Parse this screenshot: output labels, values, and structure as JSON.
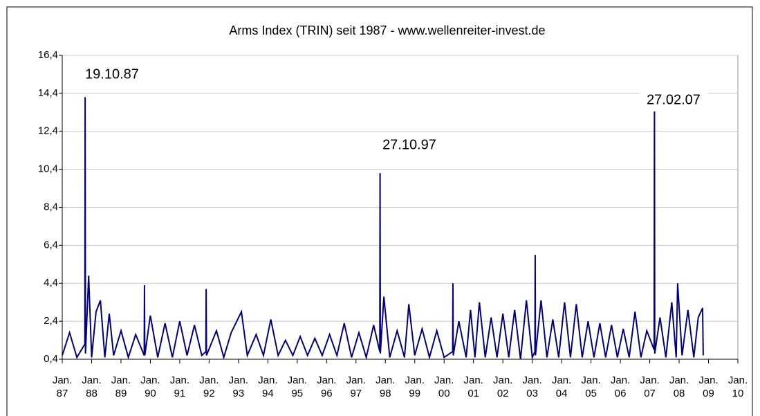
{
  "chart_data": {
    "type": "line",
    "title": "Arms Index (TRIN) seit 1987 - www.wellenreiter-invest.de",
    "annotations": [
      "19.10.87",
      "27.10.97",
      "27.02.07"
    ],
    "color": "#000080",
    "grid": true,
    "xlim": [
      1987,
      2010
    ],
    "xticks": [
      {
        "value": 1987,
        "label": "Jan. 87"
      },
      {
        "value": 1988,
        "label": "Jan. 88"
      },
      {
        "value": 1989,
        "label": "Jan. 89"
      },
      {
        "value": 1990,
        "label": "Jan. 90"
      },
      {
        "value": 1991,
        "label": "Jan. 91"
      },
      {
        "value": 1992,
        "label": "Jan. 92"
      },
      {
        "value": 1993,
        "label": "Jan. 93"
      },
      {
        "value": 1994,
        "label": "Jan. 94"
      },
      {
        "value": 1995,
        "label": "Jan. 95"
      },
      {
        "value": 1996,
        "label": "Jan. 96"
      },
      {
        "value": 1997,
        "label": "Jan. 97"
      },
      {
        "value": 1998,
        "label": "Jan. 98"
      },
      {
        "value": 1999,
        "label": "Jan. 99"
      },
      {
        "value": 2000,
        "label": "Jan. 00"
      },
      {
        "value": 2001,
        "label": "Jan. 01"
      },
      {
        "value": 2002,
        "label": "Jan. 02"
      },
      {
        "value": 2003,
        "label": "Jan. 03"
      },
      {
        "value": 2004,
        "label": "Jan. 04"
      },
      {
        "value": 2005,
        "label": "Jan. 05"
      },
      {
        "value": 2006,
        "label": "Jan. 06"
      },
      {
        "value": 2007,
        "label": "Jan. 07"
      },
      {
        "value": 2008,
        "label": "Jan. 08"
      },
      {
        "value": 2009,
        "label": "Jan. 09"
      },
      {
        "value": 2010,
        "label": "Jan. 10"
      }
    ],
    "ylim": [
      0.4,
      16.4
    ],
    "yticks": [
      {
        "value": 0.4,
        "label": "0,4"
      },
      {
        "value": 2.4,
        "label": "2,4"
      },
      {
        "value": 4.4,
        "label": "4,4"
      },
      {
        "value": 6.4,
        "label": "6,4"
      },
      {
        "value": 8.4,
        "label": "8,4"
      },
      {
        "value": 10.4,
        "label": "10,4"
      },
      {
        "value": 12.4,
        "label": "12,4"
      },
      {
        "value": 14.4,
        "label": "14,4"
      },
      {
        "value": 16.4,
        "label": "16,4"
      }
    ],
    "x": [
      1987.0,
      1987.25,
      1987.5,
      1987.77,
      1987.78,
      1987.79,
      1987.9,
      1988.0,
      1988.15,
      1988.3,
      1988.45,
      1988.6,
      1988.75,
      1989.0,
      1989.25,
      1989.5,
      1989.79,
      1989.8,
      1989.81,
      1990.0,
      1990.25,
      1990.5,
      1990.75,
      1991.0,
      1991.25,
      1991.5,
      1991.75,
      1991.89,
      1991.9,
      1991.91,
      1992.25,
      1992.5,
      1992.75,
      1993.1,
      1993.3,
      1993.6,
      1993.85,
      1994.1,
      1994.35,
      1994.6,
      1994.85,
      1995.1,
      1995.35,
      1995.6,
      1995.85,
      1996.1,
      1996.35,
      1996.6,
      1996.85,
      1997.1,
      1997.35,
      1997.6,
      1997.81,
      1997.82,
      1997.83,
      1997.95,
      1998.15,
      1998.4,
      1998.65,
      1998.8,
      1999.0,
      1999.25,
      1999.5,
      1999.75,
      2000.0,
      2000.29,
      2000.3,
      2000.31,
      2000.5,
      2000.75,
      2000.9,
      2001.05,
      2001.2,
      2001.4,
      2001.6,
      2001.8,
      2002.0,
      2002.2,
      2002.4,
      2002.6,
      2002.8,
      2003.0,
      2003.09,
      2003.1,
      2003.11,
      2003.3,
      2003.5,
      2003.7,
      2003.9,
      2004.1,
      2004.3,
      2004.5,
      2004.7,
      2004.9,
      2005.1,
      2005.3,
      2005.5,
      2005.7,
      2005.9,
      2006.1,
      2006.3,
      2006.5,
      2006.7,
      2006.9,
      2007.15,
      2007.16,
      2007.17,
      2007.35,
      2007.55,
      2007.75,
      2007.9,
      2007.95,
      2008.1,
      2008.3,
      2008.5,
      2008.65,
      2008.8,
      2008.82
    ],
    "values": [
      0.6,
      1.8,
      0.5,
      1.2,
      14.2,
      0.7,
      4.8,
      0.5,
      2.9,
      3.5,
      0.5,
      2.8,
      0.6,
      1.9,
      0.5,
      1.7,
      0.6,
      4.3,
      0.6,
      2.7,
      0.5,
      2.3,
      0.5,
      2.4,
      0.6,
      2.2,
      0.6,
      0.8,
      4.1,
      0.6,
      1.9,
      0.5,
      1.8,
      2.9,
      0.6,
      1.7,
      0.6,
      2.5,
      0.6,
      1.4,
      0.6,
      1.6,
      0.6,
      1.5,
      0.6,
      1.7,
      0.6,
      2.3,
      0.5,
      1.8,
      0.5,
      2.2,
      0.8,
      10.2,
      0.7,
      3.7,
      0.5,
      1.9,
      0.5,
      3.3,
      0.6,
      2.0,
      0.5,
      1.9,
      0.5,
      0.8,
      4.4,
      0.6,
      2.4,
      0.5,
      3.0,
      0.5,
      3.4,
      0.5,
      2.6,
      0.5,
      2.8,
      0.5,
      3.0,
      0.4,
      3.5,
      0.5,
      0.8,
      5.9,
      0.6,
      3.5,
      0.5,
      2.5,
      0.5,
      3.4,
      0.5,
      3.3,
      0.5,
      2.4,
      0.5,
      2.3,
      0.5,
      2.2,
      0.5,
      2.0,
      0.5,
      2.9,
      0.5,
      1.9,
      0.9,
      14.2,
      0.7,
      2.6,
      0.5,
      3.4,
      0.5,
      4.4,
      0.6,
      3.0,
      0.5,
      2.6,
      3.1,
      0.6
    ]
  }
}
